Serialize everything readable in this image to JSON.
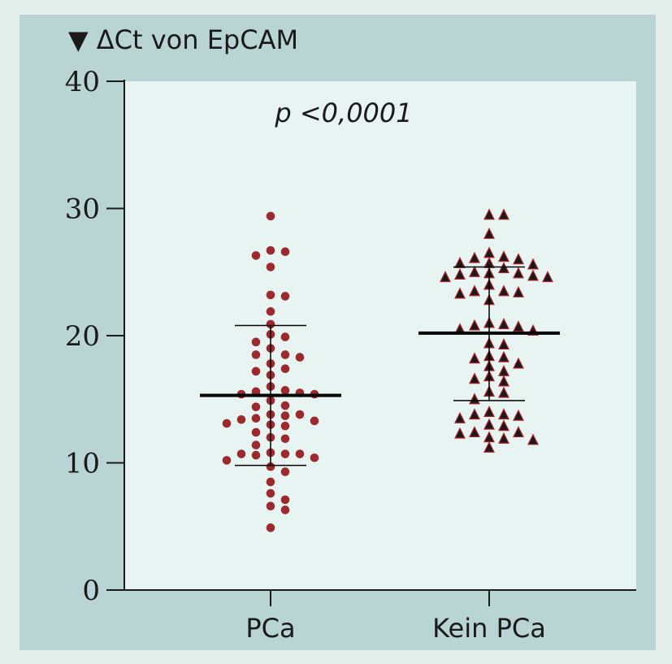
{
  "chart_data": {
    "type": "scatter",
    "title": "▼ ΔCt von EpCAM",
    "annotation": "p <0,0001",
    "xlabel": "",
    "ylabel": "",
    "ylim": [
      0,
      40
    ],
    "yticks": [
      0,
      10,
      20,
      30,
      40
    ],
    "categories": [
      "PCa",
      "Kein PCa"
    ],
    "grid": false,
    "colors": {
      "plot_bg": "#e8f4f1",
      "frame_bg": "#b8d5d3",
      "pca_marker": "#9b2a2e",
      "kein_marker": "#1a1a1a",
      "kein_marker_edge": "#b0222a",
      "axis": "#1a1a1a"
    },
    "series": [
      {
        "category": "PCa",
        "marker": "circle",
        "mean": 15.3,
        "sd_upper": 20.8,
        "sd_lower": 9.8,
        "values": [
          29.4,
          26.7,
          26.6,
          26.3,
          25.4,
          23.2,
          23.1,
          21.9,
          20.9,
          20.1,
          19.9,
          19.5,
          19.0,
          18.5,
          18.5,
          18.3,
          17.8,
          17.4,
          17.2,
          16.9,
          16.0,
          15.7,
          15.6,
          15.5,
          15.4,
          15.4,
          14.9,
          14.5,
          14.4,
          13.8,
          13.8,
          13.7,
          13.5,
          13.4,
          13.3,
          13.1,
          13.0,
          12.9,
          12.4,
          12.0,
          11.9,
          11.4,
          10.8,
          10.7,
          10.7,
          10.7,
          10.6,
          10.4,
          10.2,
          9.7,
          9.3,
          8.5,
          7.6,
          7.1,
          6.6,
          6.3,
          4.9
        ]
      },
      {
        "category": "Kein PCa",
        "marker": "triangle",
        "mean": 20.2,
        "sd_upper": 25.4,
        "sd_lower": 14.9,
        "values": [
          29.5,
          29.5,
          28.0,
          26.5,
          26.2,
          26.1,
          26.0,
          25.7,
          25.7,
          25.6,
          25.3,
          25.0,
          24.9,
          24.9,
          24.8,
          24.7,
          24.6,
          24.6,
          24.0,
          23.5,
          23.5,
          23.4,
          23.3,
          22.8,
          21.0,
          20.9,
          20.8,
          20.7,
          20.5,
          20.4,
          19.4,
          19.3,
          18.4,
          18.3,
          18.2,
          17.8,
          17.6,
          17.2,
          16.8,
          16.6,
          16.4,
          15.6,
          15.5,
          15.0,
          14.0,
          13.8,
          13.8,
          13.7,
          13.5,
          13.0,
          12.9,
          12.4,
          12.4,
          12.3,
          12.0,
          11.9,
          11.8,
          11.2
        ]
      }
    ]
  }
}
